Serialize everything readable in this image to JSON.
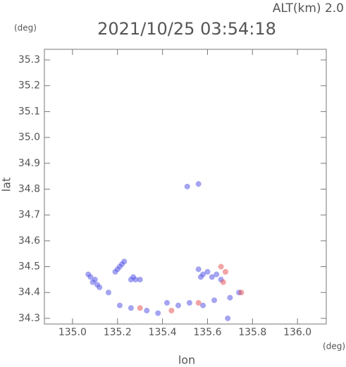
{
  "altitude_label": "ALT(km) 2.0",
  "lat_unit": "(deg)",
  "lon_unit": "(deg)",
  "chart_data": {
    "type": "scatter",
    "title": "2021/10/25 03:54:18",
    "x_label": "lon",
    "y_label": "lat",
    "xlim": [
      134.875,
      136.128
    ],
    "ylim": [
      34.278,
      35.341
    ],
    "xticks": [
      {
        "value": 135,
        "label": "135.0"
      },
      135.2,
      135.4,
      135.6,
      135.8,
      {
        "value": 136,
        "label": "136.0"
      }
    ],
    "yticks": [
      34.3,
      34.4,
      34.5,
      34.6,
      34.7,
      34.8,
      34.9,
      {
        "value": 35,
        "label": "35.0"
      },
      35.1,
      35.2,
      35.3
    ],
    "series": [
      {
        "color": "#5a5ae6",
        "x": [
          135.08,
          135.1,
          135.11,
          135.09,
          135.12,
          135.07,
          135.19,
          135.21,
          135.23,
          135.2,
          135.22,
          135.26,
          135.28,
          135.3,
          135.27,
          135.51,
          135.56,
          135.56,
          135.58,
          135.6,
          135.62,
          135.64,
          135.66,
          135.57,
          135.16,
          135.21,
          135.26,
          135.33,
          135.38,
          135.42,
          135.47,
          135.52,
          135.58,
          135.63,
          135.7,
          135.74,
          135.69
        ],
        "values": [
          34.46,
          34.45,
          34.43,
          34.44,
          34.42,
          34.47,
          34.48,
          34.5,
          34.52,
          34.49,
          34.51,
          34.45,
          34.45,
          34.45,
          34.46,
          34.81,
          34.82,
          34.49,
          34.47,
          34.48,
          34.46,
          34.47,
          34.45,
          34.46,
          34.4,
          34.35,
          34.34,
          34.33,
          34.32,
          34.36,
          34.35,
          34.36,
          34.35,
          34.37,
          34.38,
          34.4,
          34.3
        ]
      },
      {
        "color": "#e65a5a",
        "x": [
          135.66,
          135.68,
          135.67,
          135.44,
          135.56,
          135.3,
          135.75
        ],
        "values": [
          34.5,
          34.48,
          34.44,
          34.33,
          34.36,
          34.34,
          34.4
        ]
      }
    ]
  }
}
